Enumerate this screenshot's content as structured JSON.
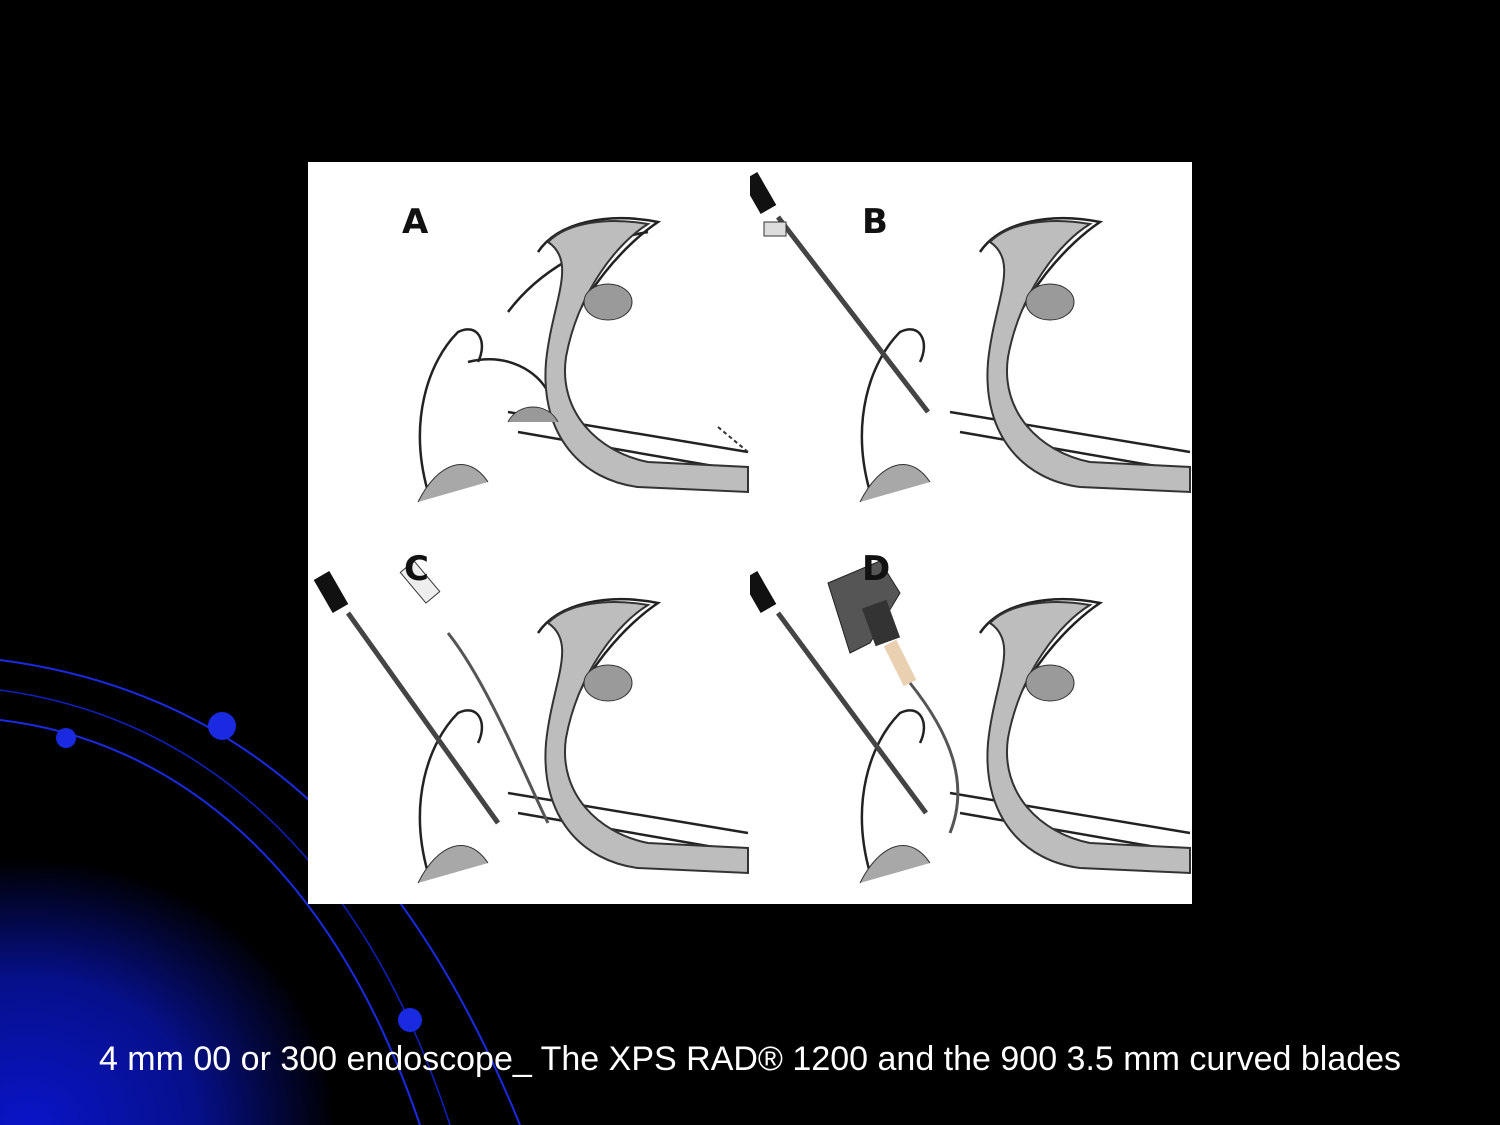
{
  "slide": {
    "caption": "4 mm 00 or 300 endoscope_ The XPS RAD® 1200 and the 900 3.5 mm curved blades",
    "background_color": "#000000",
    "accent_color": "#0a10a0"
  },
  "figure": {
    "panels": [
      {
        "label": "A",
        "instruments": []
      },
      {
        "label": "B",
        "instruments": [
          "endoscope"
        ]
      },
      {
        "label": "C",
        "instruments": [
          "endoscope",
          "suction"
        ]
      },
      {
        "label": "D",
        "instruments": [
          "endoscope",
          "microdebrider"
        ]
      }
    ]
  }
}
